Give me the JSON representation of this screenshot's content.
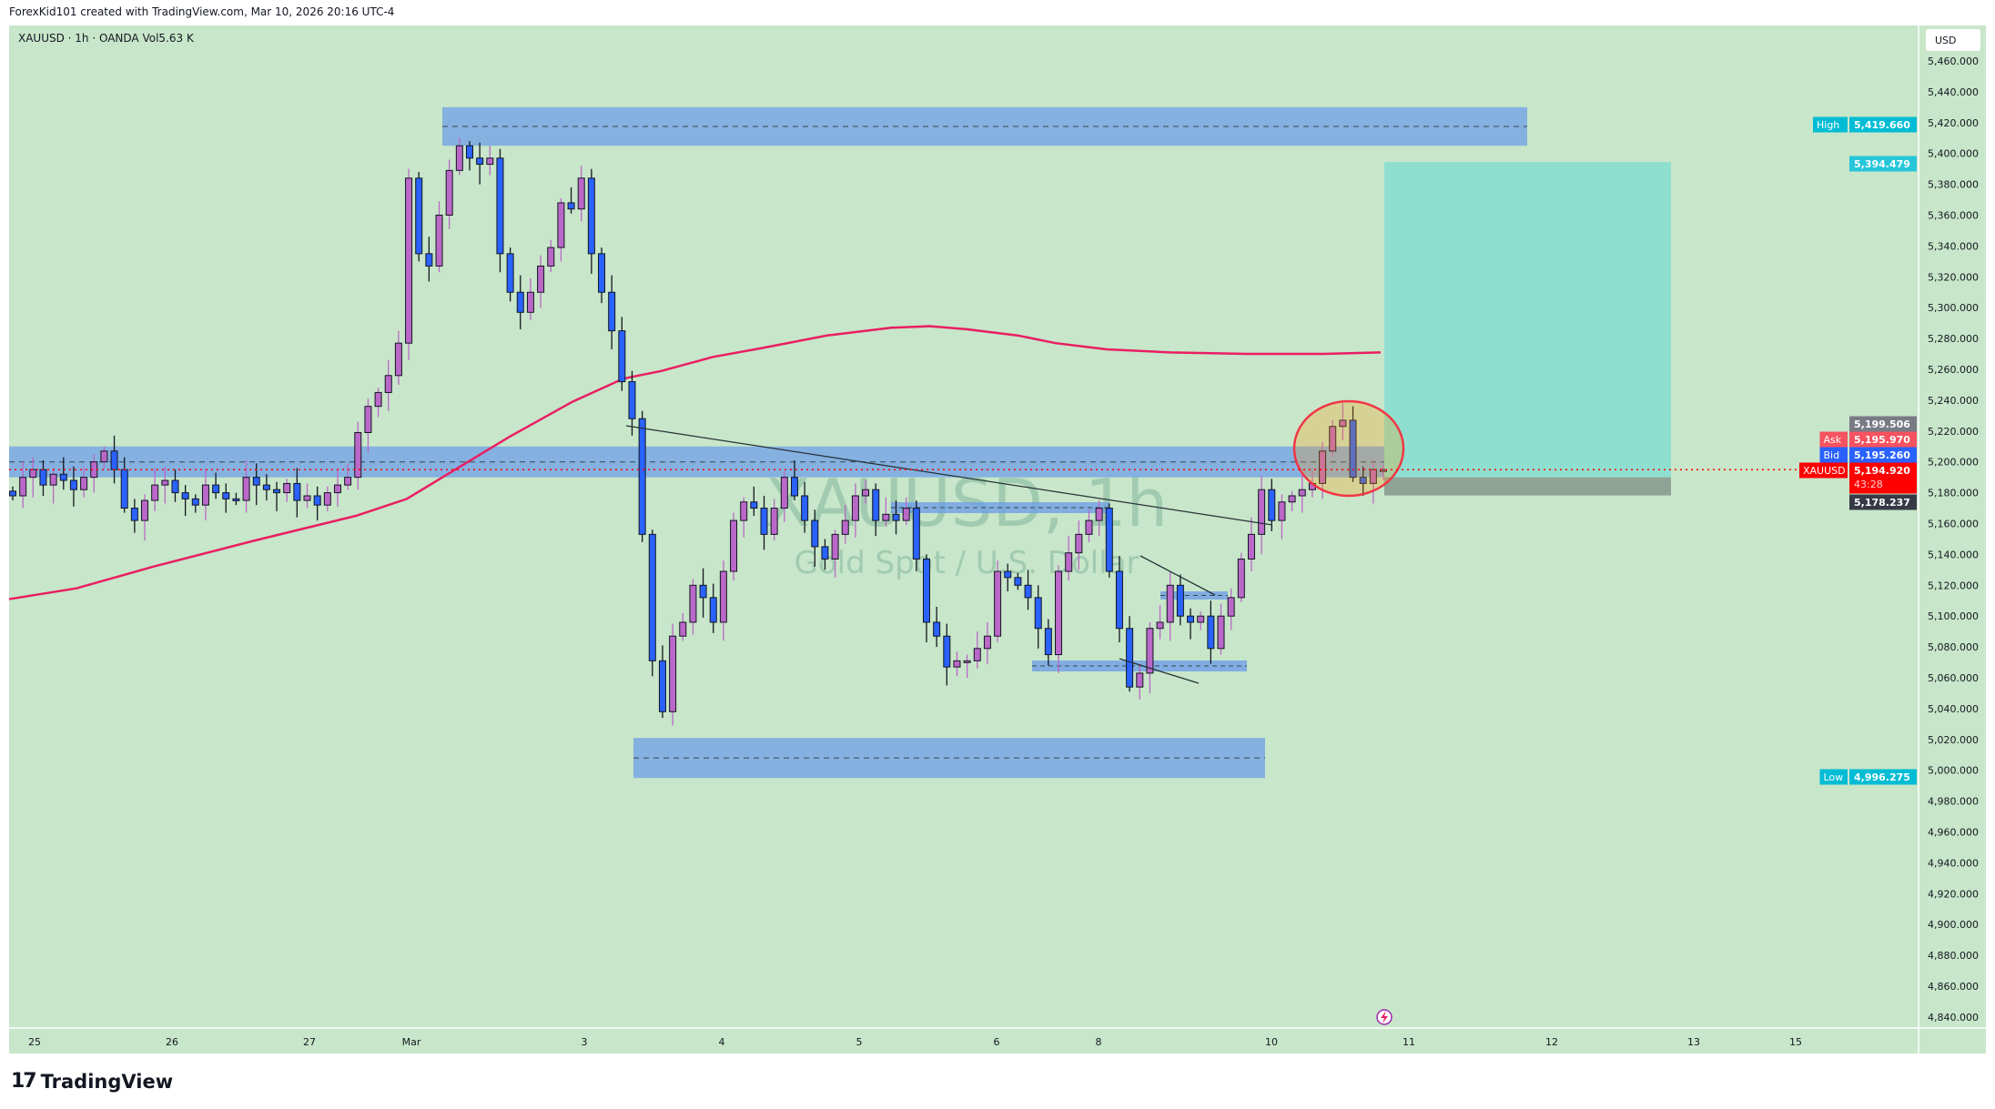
{
  "header": {
    "credit": "ForexKid101 created with TradingView.com, Mar 10, 2026 20:16 UTC-4",
    "legend": "XAUUSD · 1h · OANDA  Vol5.63 K"
  },
  "watermark": {
    "symbol": "XAUUSD, 1h",
    "description": "Gold Spot / U.S. Dollar"
  },
  "brand": {
    "name": "TradingView"
  },
  "colors": {
    "background": "#c8e6c9",
    "up_candle": "#ba68c8",
    "down_candle": "#2962ff",
    "zone": "#6f9fe8",
    "target_box": "#8fdfd0",
    "stop_box": "#8fa496",
    "moving_average": "#e91e63",
    "current_price": "#ff0000"
  },
  "chart_data": {
    "type": "candlestick",
    "symbol": "XAUUSD",
    "interval": "1h",
    "currency": "USD",
    "ylim": [
      4830,
      5475
    ],
    "y_ticks": [
      5460,
      5440,
      5420,
      5400,
      5380,
      5360,
      5340,
      5320,
      5300,
      5280,
      5260,
      5240,
      5220,
      5200,
      5180,
      5160,
      5140,
      5120,
      5100,
      5080,
      5060,
      5040,
      5020,
      5000,
      4980,
      4960,
      4940,
      4920,
      4900,
      4880,
      4860,
      4840
    ],
    "x_ticks": [
      "25",
      "26",
      "27",
      "Mar",
      "3",
      "4",
      "5",
      "6",
      "8",
      "10",
      "11",
      "12",
      "13",
      "15"
    ],
    "closes": [
      5178,
      5190,
      5195,
      5185,
      5192,
      5188,
      5182,
      5190,
      5200,
      5207,
      5195,
      5170,
      5162,
      5175,
      5185,
      5188,
      5180,
      5176,
      5172,
      5185,
      5180,
      5176,
      5175,
      5190,
      5185,
      5182,
      5180,
      5186,
      5175,
      5178,
      5172,
      5180,
      5185,
      5190,
      5219,
      5236,
      5245,
      5256,
      5277,
      5384,
      5335,
      5327,
      5360,
      5389,
      5405,
      5397,
      5393,
      5397,
      5335,
      5310,
      5297,
      5310,
      5327,
      5339,
      5368,
      5364,
      5384,
      5335,
      5310,
      5285,
      5252,
      5228,
      5153,
      5071,
      5038,
      5087,
      5096,
      5120,
      5112,
      5096,
      5129,
      5162,
      5174,
      5170,
      5153,
      5170,
      5190,
      5178,
      5162,
      5145,
      5137,
      5153,
      5162,
      5178,
      5182,
      5162,
      5166,
      5162,
      5170,
      5137,
      5096,
      5087,
      5067,
      5071,
      5071,
      5079,
      5087,
      5129,
      5125,
      5120,
      5112,
      5092,
      5075,
      5129,
      5141,
      5153,
      5162,
      5170,
      5129,
      5092,
      5054,
      5063,
      5092,
      5096,
      5120,
      5100,
      5096,
      5100,
      5079,
      5100,
      5112,
      5137,
      5153,
      5182,
      5162,
      5174,
      5178,
      5182,
      5186,
      5207,
      5223,
      5227,
      5190,
      5186,
      5195,
      5195
    ],
    "moving_average": [
      5111,
      5118,
      5132,
      5149,
      5165,
      5176,
      5196,
      5216,
      5239,
      5254,
      5259,
      5268,
      5274,
      5282,
      5287,
      5288,
      5286,
      5282,
      5277,
      5273,
      5271,
      5270,
      5270,
      5271
    ],
    "zones": [
      {
        "name": "resistance-zone-top",
        "from": 5405,
        "to": 5430
      },
      {
        "name": "resistance-zone-mid",
        "from": 5190,
        "to": 5210
      },
      {
        "name": "support-zone-bottom",
        "from": 4995,
        "to": 5021
      }
    ],
    "position": {
      "entry": 5190,
      "target": 5394.479,
      "stop": 5178.237
    },
    "price_labels": {
      "high": {
        "label": "High",
        "value": "5,419.660"
      },
      "target": {
        "value": "5,394.479"
      },
      "marker": {
        "value": "5,199.506"
      },
      "ask": {
        "label": "Ask",
        "value": "5,195.970"
      },
      "bid": {
        "label": "Bid",
        "value": "5,195.260"
      },
      "last": {
        "label": "XAUUSD",
        "value": "5,194.920",
        "countdown": "43:28"
      },
      "stop": {
        "value": "5,178.237"
      },
      "low": {
        "label": "Low",
        "value": "4,996.275"
      }
    }
  }
}
